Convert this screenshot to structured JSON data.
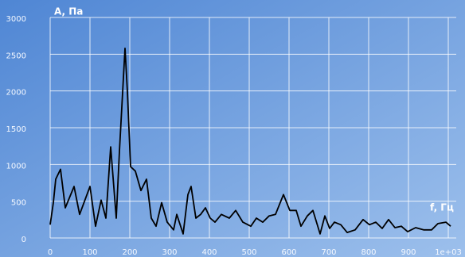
{
  "chart_data": {
    "type": "line",
    "y_label": "A, Па",
    "x_label": "f, Гц",
    "x": [
      0,
      8,
      14,
      26,
      38,
      60,
      74,
      100,
      114,
      128,
      140,
      152,
      166,
      174,
      188,
      194,
      202,
      214,
      228,
      242,
      254,
      266,
      280,
      294,
      310,
      318,
      334,
      346,
      354,
      366,
      378,
      390,
      402,
      414,
      430,
      450,
      466,
      484,
      504,
      518,
      534,
      550,
      566,
      586,
      602,
      618,
      630,
      646,
      660,
      678,
      690,
      702,
      714,
      730,
      746,
      766,
      786,
      802,
      818,
      834,
      850,
      866,
      882,
      898,
      918,
      938,
      958,
      974,
      994,
      1006
    ],
    "values": [
      180,
      480,
      800,
      935,
      410,
      700,
      320,
      700,
      160,
      515,
      270,
      1240,
      270,
      1180,
      2580,
      1990,
      970,
      910,
      645,
      800,
      270,
      160,
      480,
      215,
      110,
      320,
      55,
      590,
      700,
      270,
      320,
      410,
      270,
      215,
      320,
      270,
      375,
      215,
      160,
      270,
      215,
      300,
      320,
      590,
      375,
      375,
      160,
      300,
      375,
      55,
      300,
      130,
      215,
      180,
      75,
      110,
      250,
      180,
      215,
      130,
      250,
      140,
      160,
      85,
      140,
      110,
      110,
      195,
      215,
      160
    ],
    "color": "#000000",
    "xlim": [
      0,
      1020
    ],
    "ylim": [
      0,
      3000
    ],
    "xticks": [
      0,
      100,
      200,
      300,
      400,
      500,
      600,
      700,
      800,
      900,
      {
        "value": 1000,
        "label": "1e+03"
      }
    ],
    "yticks": [
      0,
      500,
      1000,
      1500,
      2000,
      2500,
      3000
    ],
    "grid": true
  }
}
